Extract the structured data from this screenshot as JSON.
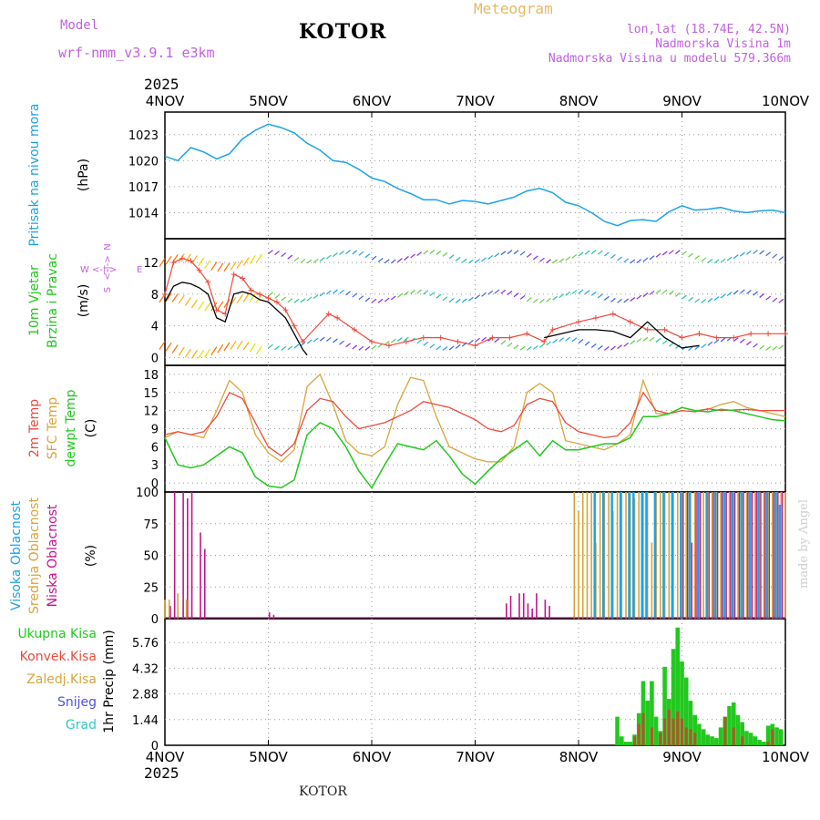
{
  "header": {
    "model_label": "Model",
    "model_name": "wrf-nmm_v3.9.1 e3km",
    "city": "KOTOR",
    "meteogram": "Meteogram",
    "lonlat": "lon,lat (18.74E, 42.5N)",
    "alt": "Nadmorska Visina 1m",
    "alt_model": "Nadmorska Visina u modelu 579.366m",
    "year": "2025"
  },
  "footer": {
    "city": "KOTOR",
    "year": "2025",
    "made_by": "made by Angel"
  },
  "colors": {
    "pressure": "#1aa3e8",
    "temp": "#ef4a3c",
    "sfc": "#d9a43a",
    "dewpt": "#22c81e",
    "high": "#1aa3e8",
    "mid": "#d9a43a",
    "low": "#c0148c",
    "total": "#22c81e",
    "conv": "#ef4a3c",
    "snow": "#5050e0",
    "hail": "#30c8c8",
    "label": "#c060e0"
  },
  "chart_data": [
    {
      "type": "line",
      "panel": "pressure",
      "ylabel": "Pritisak na nivou mora",
      "unit": "(hPa)",
      "x_labels": [
        "4NOV",
        "5NOV",
        "6NOV",
        "7NOV",
        "8NOV",
        "9NOV",
        "10NOV"
      ],
      "xlim": [
        0,
        144
      ],
      "ylim": [
        1011,
        1025.6
      ],
      "yticks": [
        "1014",
        "1017",
        "1020",
        "1023"
      ],
      "series": [
        {
          "name": "Pressure",
          "x": [
            0,
            3,
            6,
            9,
            12,
            15,
            18,
            21,
            24,
            27,
            30,
            33,
            36,
            39,
            42,
            45,
            48,
            51,
            54,
            57,
            60,
            63,
            66,
            69,
            72,
            75,
            78,
            81,
            84,
            87,
            90,
            93,
            96,
            99,
            102,
            105,
            108,
            111,
            114,
            117,
            120,
            123,
            126,
            129,
            132,
            135,
            138,
            141,
            144
          ],
          "values": [
            1020.5,
            1020.0,
            1021.5,
            1021.0,
            1020.2,
            1020.8,
            1022.5,
            1023.5,
            1024.2,
            1023.8,
            1023.2,
            1022.0,
            1021.2,
            1020.0,
            1019.8,
            1019.0,
            1018.0,
            1017.6,
            1016.8,
            1016.2,
            1015.5,
            1015.5,
            1015.0,
            1015.4,
            1015.3,
            1015.0,
            1015.4,
            1015.8,
            1016.5,
            1016.8,
            1016.3,
            1015.2,
            1014.8,
            1014.0,
            1013.0,
            1012.5,
            1013.1,
            1013.2,
            1013.0,
            1014.1,
            1014.8,
            1014.3,
            1014.4,
            1014.6,
            1014.2,
            1014.0,
            1014.2,
            1014.3,
            1014.0
          ]
        }
      ]
    },
    {
      "type": "line",
      "panel": "wind",
      "ylabel": [
        "10m Vjetar",
        "Brzina i Pravac"
      ],
      "unit": "(m/s)",
      "direction_legend": {
        "n": "N",
        "e": "E",
        "s": "S",
        "w": "W",
        "arrows": "<-|->"
      },
      "xlim": [
        0,
        144
      ],
      "ylim": [
        -1,
        15
      ],
      "yticks": [
        "0",
        "4",
        "8",
        "12"
      ],
      "series": [
        {
          "name": "Wind speed",
          "x": [
            0,
            2,
            4,
            6,
            8,
            10,
            12,
            14,
            16,
            18,
            20,
            22,
            24,
            26,
            28,
            30,
            32,
            33
          ],
          "values": [
            7,
            9,
            9.5,
            9.3,
            8.8,
            8,
            5,
            4.5,
            8,
            8.3,
            8,
            7.3,
            7,
            6,
            5,
            3,
            1,
            0.3
          ]
        },
        {
          "name": "Gusts",
          "x": [
            0,
            2,
            4,
            6,
            8,
            10,
            12,
            14,
            16,
            18,
            20,
            22,
            24,
            26,
            28,
            30,
            32,
            38,
            40,
            44,
            48,
            52,
            56,
            60,
            64,
            68,
            72,
            76,
            80,
            84,
            88,
            90,
            96,
            100,
            104,
            108,
            112,
            116,
            120,
            124,
            128,
            132,
            136,
            140,
            144
          ],
          "values": [
            8,
            12,
            12.5,
            12.2,
            11,
            9.5,
            6,
            5.5,
            10.5,
            10,
            8.5,
            8,
            7.5,
            7,
            6,
            4,
            2,
            5.5,
            5,
            3.5,
            2,
            1.5,
            2,
            2.5,
            2.5,
            2,
            1.5,
            2.5,
            2.5,
            3,
            2,
            3.5,
            4.5,
            5,
            5.5,
            4.5,
            3.5,
            3.5,
            2.5,
            3,
            2.5,
            2.5,
            3,
            3,
            3
          ]
        },
        {
          "name": "Black speed later",
          "x": [
            88,
            92,
            96,
            100,
            104,
            108,
            110,
            112,
            116,
            120,
            124
          ],
          "values": [
            2.5,
            3,
            3.5,
            3.5,
            3.3,
            2.5,
            3.5,
            4.5,
            2.5,
            1.2,
            1.5
          ]
        }
      ]
    },
    {
      "type": "line",
      "panel": "temperature",
      "ylabel": [
        "2m Temp",
        "SFC Temp",
        "dewpt Temp"
      ],
      "unit": "(C)",
      "xlim": [
        0,
        144
      ],
      "ylim": [
        -1.5,
        19.5
      ],
      "yticks": [
        "0",
        "3",
        "6",
        "9",
        "12",
        "15",
        "18"
      ],
      "series": [
        {
          "name": "2m Temp",
          "x": [
            0,
            3,
            6,
            9,
            12,
            15,
            18,
            21,
            24,
            27,
            30,
            33,
            36,
            39,
            42,
            45,
            48,
            51,
            54,
            57,
            60,
            63,
            66,
            69,
            72,
            75,
            78,
            81,
            84,
            87,
            90,
            93,
            96,
            99,
            102,
            105,
            108,
            111,
            114,
            117,
            120,
            123,
            126,
            129,
            132,
            135,
            138,
            141,
            144
          ],
          "values": [
            8,
            8.5,
            8,
            8.5,
            11,
            15,
            14,
            10,
            6,
            4.5,
            6.5,
            12,
            14,
            13.5,
            11,
            9,
            9.5,
            10,
            11,
            12,
            13.5,
            13,
            12.5,
            11.5,
            10.5,
            9,
            8.5,
            9.5,
            13,
            14,
            13.5,
            10,
            8.5,
            8,
            7.5,
            7.8,
            10,
            15,
            12,
            11.5,
            12,
            11.8,
            12.3,
            12,
            12.1,
            12.2,
            12.0,
            12.0,
            12.0
          ]
        },
        {
          "name": "SFC Temp",
          "x": [
            0,
            3,
            6,
            9,
            12,
            15,
            18,
            21,
            24,
            27,
            30,
            33,
            36,
            39,
            42,
            45,
            48,
            51,
            54,
            57,
            60,
            63,
            66,
            69,
            72,
            75,
            78,
            81,
            84,
            87,
            90,
            93,
            96,
            99,
            102,
            105,
            108,
            111,
            114,
            117,
            120,
            123,
            126,
            129,
            132,
            135,
            138,
            141,
            144
          ],
          "values": [
            7.5,
            8.5,
            8,
            7.5,
            12,
            17,
            15,
            8,
            5,
            3.5,
            5.5,
            16,
            18,
            13,
            7,
            5,
            4.5,
            6,
            13,
            17.5,
            17,
            11,
            6,
            5,
            4,
            3.5,
            3.5,
            6,
            15,
            16.5,
            15,
            7,
            6.5,
            6,
            5.5,
            6.5,
            8,
            17,
            11.5,
            11.5,
            12.5,
            12,
            12.2,
            13,
            13.5,
            12.5,
            12.0,
            11.5,
            11.0
          ]
        },
        {
          "name": "dewpt Temp",
          "x": [
            0,
            3,
            6,
            9,
            12,
            15,
            18,
            21,
            24,
            27,
            30,
            33,
            36,
            39,
            42,
            45,
            48,
            51,
            54,
            57,
            60,
            63,
            66,
            69,
            72,
            75,
            78,
            81,
            84,
            87,
            90,
            93,
            96,
            99,
            102,
            105,
            108,
            111,
            114,
            117,
            120,
            123,
            126,
            129,
            132,
            135,
            138,
            141,
            144
          ],
          "values": [
            7.5,
            3,
            2.5,
            3,
            4.5,
            6,
            5,
            1,
            -0.5,
            -0.8,
            0.5,
            8,
            10,
            9,
            6,
            2,
            -0.8,
            3,
            6.5,
            6,
            5.5,
            7,
            4.5,
            1.5,
            -0.2,
            2,
            4,
            5.5,
            7,
            4.5,
            7,
            5.5,
            5.5,
            6,
            6.5,
            6.5,
            7.5,
            11,
            11,
            11.5,
            12.5,
            12,
            11.8,
            12.2,
            12.0,
            11.5,
            11.0,
            10.5,
            10.3
          ]
        }
      ]
    },
    {
      "type": "bar",
      "panel": "cloud",
      "ylabel": [
        "Visoka Oblacnost",
        "Srednja Oblacnost",
        "Niska Oblacnost"
      ],
      "unit": "(%)",
      "xlim": [
        0,
        144
      ],
      "ylim": [
        0,
        100
      ],
      "yticks": [
        "0",
        "25",
        "50",
        "75",
        "100"
      ],
      "series": [
        {
          "name": "Niska",
          "x": [
            1,
            2,
            4,
            5,
            6,
            8,
            9,
            24,
            25,
            79,
            80,
            82,
            83,
            84,
            85,
            86,
            88,
            89,
            120,
            121,
            122,
            123,
            124,
            126,
            127,
            128,
            129,
            130,
            131,
            132,
            133,
            134,
            135,
            136,
            137,
            138,
            139,
            140,
            141,
            142,
            143
          ],
          "values": [
            10,
            100,
            100,
            95,
            100,
            68,
            55,
            5,
            3,
            12,
            18,
            20,
            20,
            12,
            8,
            20,
            15,
            10,
            100,
            100,
            60,
            100,
            100,
            100,
            100,
            100,
            100,
            100,
            100,
            100,
            100,
            100,
            100,
            100,
            100,
            100,
            100,
            100,
            100,
            100,
            100
          ]
        },
        {
          "name": "Srednja",
          "x": [
            0,
            1,
            3,
            5,
            95,
            96,
            97,
            98,
            99,
            100,
            101,
            102,
            103,
            104,
            105,
            106,
            107,
            108,
            109,
            110,
            111,
            112,
            113,
            114,
            115,
            116,
            117,
            118,
            119,
            120,
            121,
            122,
            123,
            124,
            125,
            126,
            127,
            128,
            129,
            130,
            131,
            132,
            133,
            134,
            135,
            136,
            137,
            138,
            139,
            140,
            141,
            142,
            143,
            144
          ],
          "values": [
            15,
            15,
            20,
            15,
            100,
            85,
            100,
            100,
            100,
            60,
            100,
            100,
            100,
            85,
            100,
            100,
            100,
            100,
            95,
            100,
            100,
            100,
            60,
            100,
            100,
            100,
            100,
            100,
            100,
            100,
            100,
            100,
            100,
            100,
            100,
            100,
            100,
            100,
            100,
            100,
            100,
            100,
            100,
            100,
            100,
            100,
            100,
            100,
            100,
            100,
            100,
            100,
            100,
            100
          ]
        },
        {
          "name": "Visoka",
          "x": [
            100,
            102,
            104,
            106,
            108,
            109,
            111,
            112,
            114,
            116,
            118,
            120,
            122,
            124,
            126,
            128,
            130,
            132,
            134,
            136,
            138,
            140,
            142,
            143
          ],
          "values": [
            100,
            100,
            100,
            100,
            100,
            100,
            100,
            100,
            100,
            100,
            100,
            100,
            100,
            100,
            100,
            100,
            100,
            100,
            100,
            100,
            100,
            100,
            100,
            90
          ]
        }
      ]
    },
    {
      "type": "bar",
      "panel": "precip",
      "labels": [
        "Ukupna Kisa",
        "Konvek.Kisa",
        "Zaledj.Kisa",
        "Snijeg",
        "Grad"
      ],
      "ylabel": "1hr Precip (mm)",
      "xlim": [
        0,
        144
      ],
      "ylim": [
        0,
        7.1
      ],
      "yticks": [
        "0",
        "1.44",
        "2.88",
        "4.32",
        "5.76"
      ],
      "series": [
        {
          "name": "Ukupna Kisa",
          "x": [
            105,
            106,
            107,
            108,
            109,
            110,
            111,
            112,
            113,
            114,
            115,
            116,
            117,
            118,
            119,
            120,
            121,
            122,
            123,
            124,
            125,
            126,
            127,
            128,
            129,
            130,
            131,
            132,
            133,
            134,
            135,
            136,
            137,
            138,
            139,
            140,
            141,
            142,
            143
          ],
          "values": [
            1.6,
            0.5,
            0.2,
            0.2,
            0.6,
            1.8,
            3.6,
            2.5,
            3.6,
            1.6,
            0.8,
            4.4,
            2.6,
            5.4,
            6.6,
            4.7,
            3.8,
            2.5,
            1.7,
            1.2,
            0.9,
            0.6,
            0.5,
            0.4,
            1.0,
            1.6,
            2.2,
            2.4,
            1.7,
            1.3,
            0.8,
            0.7,
            0.5,
            0.3,
            0.2,
            1.1,
            1.2,
            1.0,
            0.9
          ]
        },
        {
          "name": "Konvek.Kisa",
          "x": [
            105,
            106,
            107,
            108,
            109,
            110,
            111,
            112,
            113,
            114,
            115,
            116,
            117,
            118,
            119,
            120,
            121,
            122,
            123,
            124,
            125,
            126,
            127,
            128,
            129,
            130,
            131,
            132,
            133,
            134,
            135,
            136,
            137,
            138,
            139,
            140,
            141,
            142,
            143
          ],
          "values": [
            0,
            0,
            0,
            0,
            0.5,
            1.2,
            1.8,
            0,
            1.0,
            0,
            0.7,
            1.5,
            2.0,
            1.5,
            1.9,
            1.5,
            1.0,
            0.9,
            0.7,
            0,
            0,
            0,
            0,
            0,
            0,
            1.6,
            0,
            1.0,
            0,
            0.5,
            0,
            0,
            0,
            0,
            0,
            0.2,
            0.9,
            0,
            0
          ]
        }
      ]
    }
  ]
}
